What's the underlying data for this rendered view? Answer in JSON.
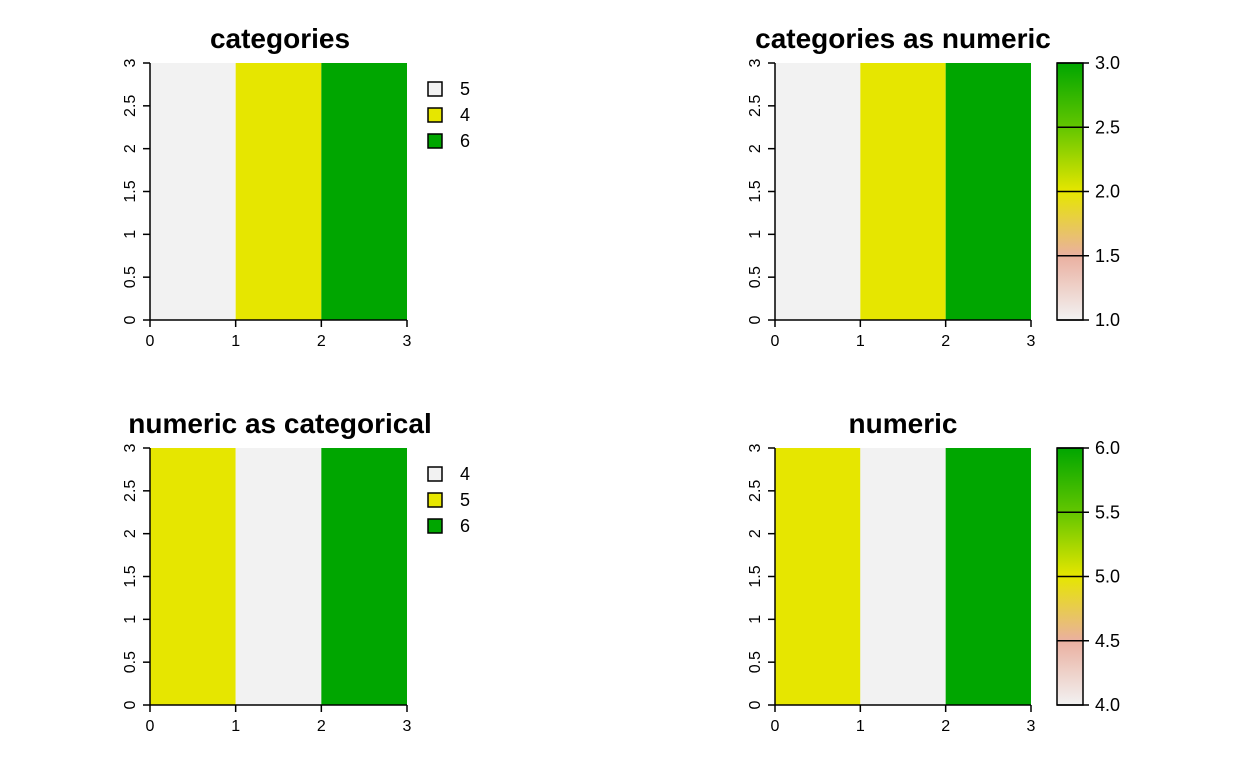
{
  "colors": {
    "pale": "#f2f2f2",
    "yellow": "#e6e600",
    "green": "#00a600",
    "salmon": "#ecb176",
    "axis": "#000000"
  },
  "chart_data": [
    {
      "title": "categories",
      "type": "heatmap",
      "xlim": [
        0,
        3
      ],
      "ylim": [
        0,
        3
      ],
      "x_ticks": [
        "0",
        "1",
        "2",
        "3"
      ],
      "y_ticks": [
        "0",
        "0.5",
        "1",
        "1.5",
        "2",
        "2.5",
        "3"
      ],
      "cells": [
        {
          "x0": 0,
          "x1": 1,
          "y0": 0,
          "y1": 3,
          "color": "#f2f2f2"
        },
        {
          "x0": 1,
          "x1": 2,
          "y0": 0,
          "y1": 3,
          "color": "#e6e600"
        },
        {
          "x0": 2,
          "x1": 3,
          "y0": 0,
          "y1": 3,
          "color": "#00a600"
        }
      ],
      "legend": {
        "kind": "categorical",
        "entries": [
          {
            "label": "5",
            "color": "#f2f2f2"
          },
          {
            "label": "4",
            "color": "#e6e600"
          },
          {
            "label": "6",
            "color": "#00a600"
          }
        ]
      }
    },
    {
      "title": "categories as numeric",
      "type": "heatmap",
      "xlim": [
        0,
        3
      ],
      "ylim": [
        0,
        3
      ],
      "x_ticks": [
        "0",
        "1",
        "2",
        "3"
      ],
      "y_ticks": [
        "0",
        "0.5",
        "1",
        "1.5",
        "2",
        "2.5",
        "3"
      ],
      "cells": [
        {
          "x0": 0,
          "x1": 1,
          "y0": 0,
          "y1": 3,
          "color": "#f2f2f2"
        },
        {
          "x0": 1,
          "x1": 2,
          "y0": 0,
          "y1": 3,
          "color": "#e6e600"
        },
        {
          "x0": 2,
          "x1": 3,
          "y0": 0,
          "y1": 3,
          "color": "#00a600"
        }
      ],
      "legend": {
        "kind": "continuous",
        "range": [
          1.0,
          3.0
        ],
        "ticks": [
          "1.0",
          "1.5",
          "2.0",
          "2.5",
          "3.0"
        ]
      }
    },
    {
      "title": "numeric as categorical",
      "type": "heatmap",
      "xlim": [
        0,
        3
      ],
      "ylim": [
        0,
        3
      ],
      "x_ticks": [
        "0",
        "1",
        "2",
        "3"
      ],
      "y_ticks": [
        "0",
        "0.5",
        "1",
        "1.5",
        "2",
        "2.5",
        "3"
      ],
      "cells": [
        {
          "x0": 0,
          "x1": 1,
          "y0": 0,
          "y1": 3,
          "color": "#e6e600"
        },
        {
          "x0": 1,
          "x1": 2,
          "y0": 0,
          "y1": 3,
          "color": "#f2f2f2"
        },
        {
          "x0": 2,
          "x1": 3,
          "y0": 0,
          "y1": 3,
          "color": "#00a600"
        }
      ],
      "legend": {
        "kind": "categorical",
        "entries": [
          {
            "label": "4",
            "color": "#f2f2f2"
          },
          {
            "label": "5",
            "color": "#e6e600"
          },
          {
            "label": "6",
            "color": "#00a600"
          }
        ]
      }
    },
    {
      "title": "numeric",
      "type": "heatmap",
      "xlim": [
        0,
        3
      ],
      "ylim": [
        0,
        3
      ],
      "x_ticks": [
        "0",
        "1",
        "2",
        "3"
      ],
      "y_ticks": [
        "0",
        "0.5",
        "1",
        "1.5",
        "2",
        "2.5",
        "3"
      ],
      "cells": [
        {
          "x0": 0,
          "x1": 1,
          "y0": 0,
          "y1": 3,
          "color": "#e6e600"
        },
        {
          "x0": 1,
          "x1": 2,
          "y0": 0,
          "y1": 3,
          "color": "#f2f2f2"
        },
        {
          "x0": 2,
          "x1": 3,
          "y0": 0,
          "y1": 3,
          "color": "#00a600"
        }
      ],
      "legend": {
        "kind": "continuous",
        "range": [
          4.0,
          6.0
        ],
        "ticks": [
          "4.0",
          "4.5",
          "5.0",
          "5.5",
          "6.0"
        ]
      }
    }
  ]
}
